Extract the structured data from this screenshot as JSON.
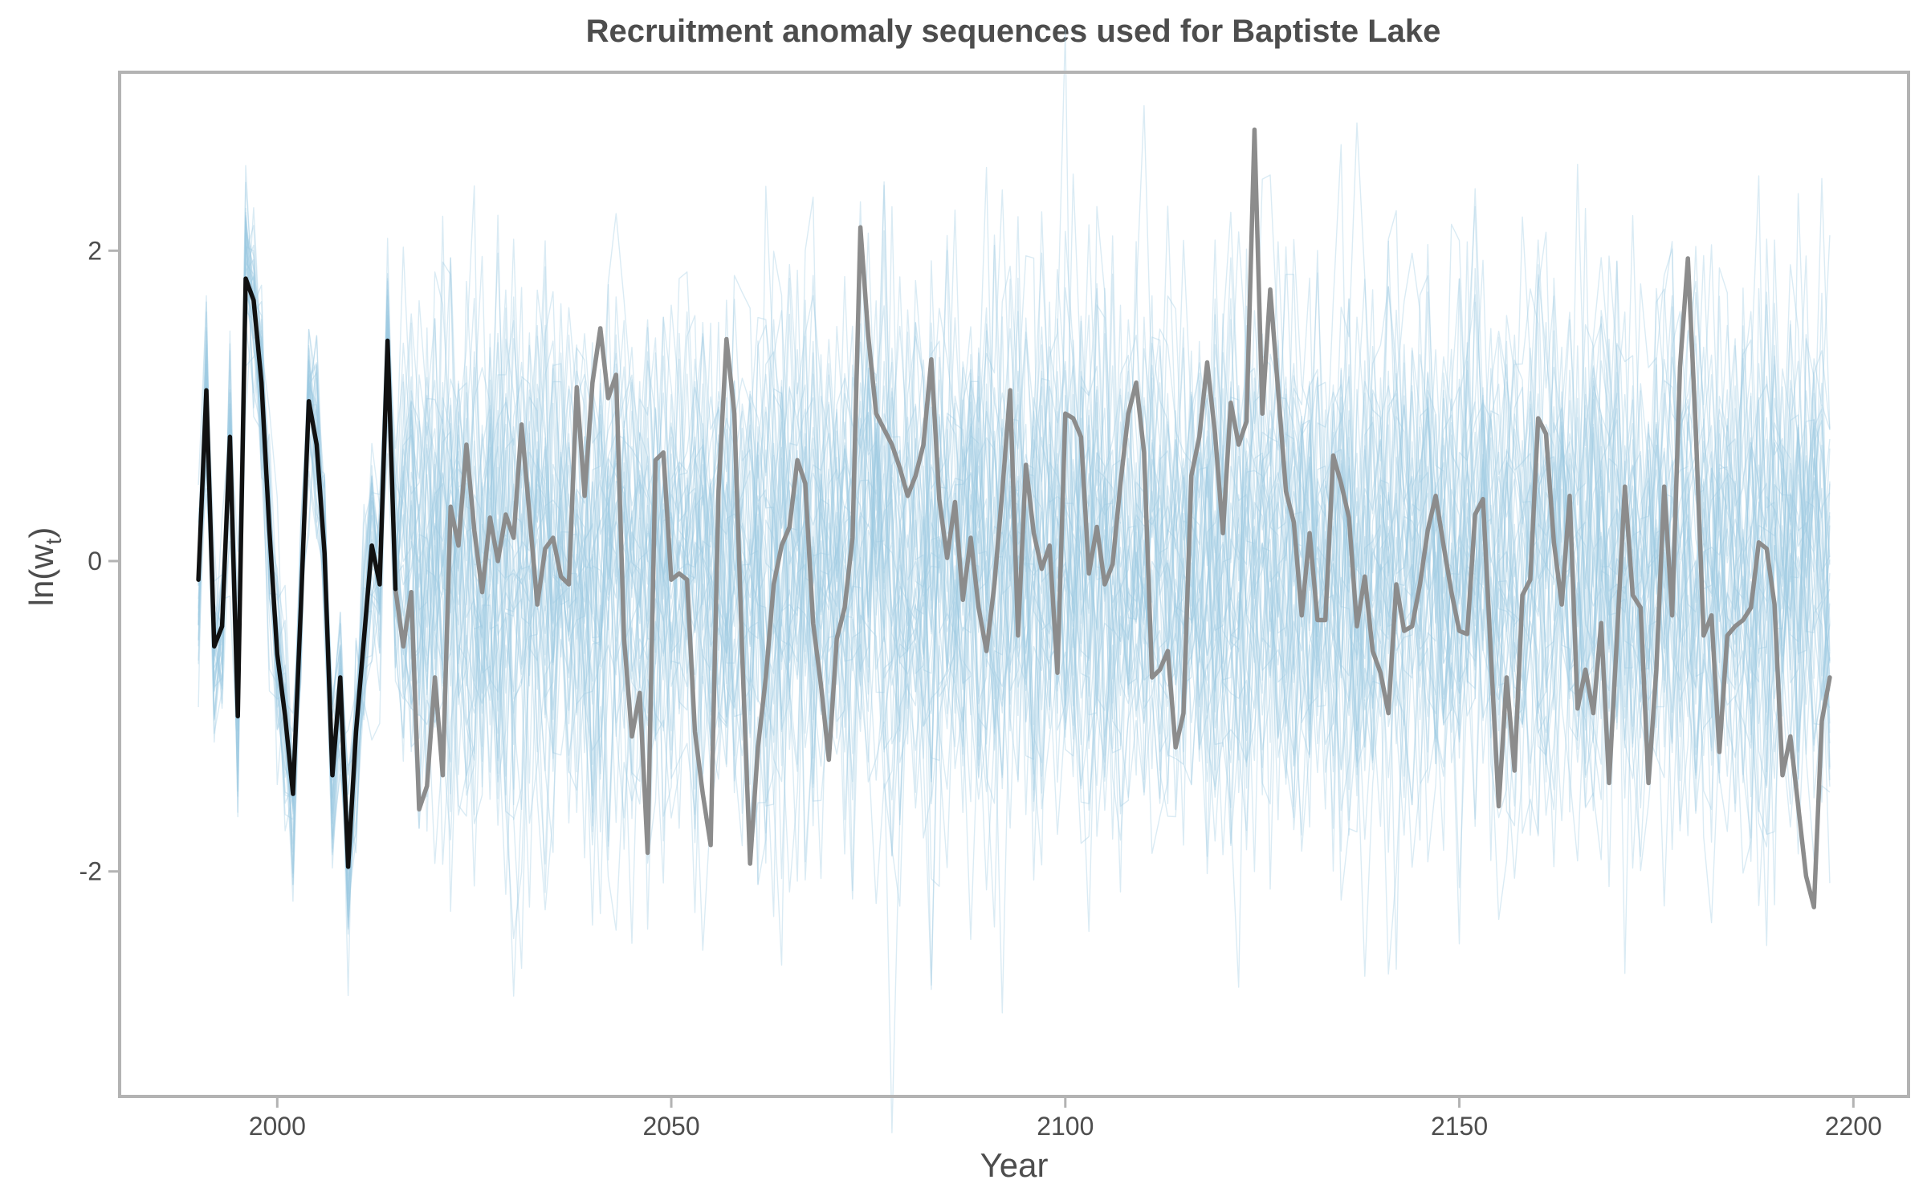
{
  "chart_data": {
    "type": "line",
    "title": "Recruitment anomaly sequences used for Baptiste Lake",
    "xlabel": "Year",
    "ylabel_main": "ln(w",
    "ylabel_sub": "t",
    "ylabel_close": ")",
    "xlim": [
      1980,
      2207
    ],
    "ylim": [
      -3.45,
      3.15
    ],
    "x_ticks": [
      2000,
      2050,
      2100,
      2150,
      2200
    ],
    "y_ticks": [
      2,
      0,
      -2
    ],
    "x_tick_labels": [
      "2000",
      "2050",
      "2100",
      "2150",
      "2200"
    ],
    "y_tick_labels": [
      "2",
      "0",
      "-2"
    ],
    "grid": false,
    "legend": "none",
    "colors": {
      "observed": "#111111",
      "example_projection": "#8c8c8c",
      "simulations": "#9ecae1",
      "frame": "#b3b3b3"
    },
    "observed": {
      "x": [
        1990,
        1991,
        1992,
        1993,
        1994,
        1995,
        1996,
        1997,
        1998,
        1999,
        2000,
        2001,
        2002,
        2003,
        2004,
        2005,
        2006,
        2007,
        2008,
        2009,
        2010,
        2011,
        2012,
        2013,
        2014,
        2015
      ],
      "y": [
        -0.12,
        1.1,
        -0.55,
        -0.42,
        0.8,
        -1.0,
        1.82,
        1.68,
        1.15,
        0.2,
        -0.6,
        -1.0,
        -1.5,
        -0.3,
        1.03,
        0.75,
        0.05,
        -1.38,
        -0.75,
        -1.97,
        -1.1,
        -0.5,
        0.1,
        -0.15,
        1.42,
        -0.18
      ]
    },
    "example_projection": {
      "x": [
        2015,
        2016,
        2017,
        2018,
        2019,
        2020,
        2021,
        2022,
        2023,
        2024,
        2025,
        2026,
        2027,
        2028,
        2029,
        2030,
        2031,
        2032,
        2033,
        2034,
        2035,
        2036,
        2037,
        2038,
        2039,
        2040,
        2041,
        2042,
        2043,
        2044,
        2045,
        2046,
        2047,
        2048,
        2049,
        2050,
        2051,
        2052,
        2053,
        2054,
        2055,
        2056,
        2057,
        2058,
        2059,
        2060,
        2061,
        2062,
        2063,
        2064,
        2065,
        2066,
        2067,
        2068,
        2069,
        2070,
        2071,
        2072,
        2073,
        2074,
        2075,
        2076,
        2077,
        2078,
        2079,
        2080,
        2081,
        2082,
        2083,
        2084,
        2085,
        2086,
        2087,
        2088,
        2089,
        2090,
        2091,
        2092,
        2093,
        2094,
        2095,
        2096,
        2097,
        2098,
        2099,
        2100,
        2101,
        2102,
        2103,
        2104,
        2105,
        2106,
        2107,
        2108,
        2109,
        2110,
        2111,
        2112,
        2113,
        2114,
        2115,
        2116,
        2117,
        2118,
        2119,
        2120,
        2121,
        2122,
        2123,
        2124,
        2125,
        2126,
        2127,
        2128,
        2129,
        2130,
        2131,
        2132,
        2133,
        2134,
        2135,
        2136,
        2137,
        2138,
        2139,
        2140,
        2141,
        2142,
        2143,
        2144,
        2145,
        2146,
        2147,
        2148,
        2149,
        2150,
        2151,
        2152,
        2153,
        2154,
        2155,
        2156,
        2157,
        2158,
        2159,
        2160,
        2161,
        2162,
        2163,
        2164,
        2165,
        2166,
        2167,
        2168,
        2169,
        2170,
        2171,
        2172,
        2173,
        2174,
        2175,
        2176,
        2177,
        2178,
        2179,
        2180,
        2181,
        2182,
        2183,
        2184,
        2185,
        2186,
        2187,
        2188,
        2189,
        2190,
        2191,
        2192,
        2193,
        2194,
        2195,
        2196,
        2197
      ],
      "y": [
        -0.18,
        -0.55,
        -0.2,
        -1.6,
        -1.45,
        -0.75,
        -1.38,
        0.35,
        0.1,
        0.75,
        0.2,
        -0.2,
        0.28,
        0.0,
        0.3,
        0.15,
        0.88,
        0.3,
        -0.28,
        0.08,
        0.15,
        -0.1,
        -0.15,
        1.12,
        0.42,
        1.15,
        1.5,
        1.05,
        1.2,
        -0.5,
        -1.13,
        -0.85,
        -1.88,
        0.65,
        0.7,
        -0.12,
        -0.08,
        -0.12,
        -1.1,
        -1.5,
        -1.83,
        0.45,
        1.43,
        0.95,
        -0.6,
        -1.95,
        -1.2,
        -0.75,
        -0.15,
        0.1,
        0.22,
        0.65,
        0.5,
        -0.4,
        -0.8,
        -1.28,
        -0.5,
        -0.3,
        0.15,
        2.15,
        1.45,
        0.95,
        0.85,
        0.75,
        0.6,
        0.42,
        0.55,
        0.75,
        1.3,
        0.4,
        0.02,
        0.38,
        -0.25,
        0.15,
        -0.3,
        -0.58,
        -0.15,
        0.45,
        1.1,
        -0.48,
        0.62,
        0.18,
        -0.05,
        0.1,
        -0.72,
        0.95,
        0.92,
        0.8,
        -0.08,
        0.22,
        -0.15,
        -0.02,
        0.5,
        0.95,
        1.15,
        0.7,
        -0.75,
        -0.7,
        -0.58,
        -1.2,
        -0.98,
        0.55,
        0.8,
        1.28,
        0.82,
        0.18,
        1.02,
        0.75,
        0.9,
        2.78,
        0.95,
        1.75,
        1.1,
        0.45,
        0.25,
        -0.35,
        0.18,
        -0.38,
        -0.38,
        0.68,
        0.5,
        0.28,
        -0.42,
        -0.1,
        -0.58,
        -0.72,
        -0.98,
        -0.15,
        -0.45,
        -0.42,
        -0.15,
        0.2,
        0.42,
        0.1,
        -0.2,
        -0.45,
        -0.47,
        0.3,
        0.4,
        -0.6,
        -1.58,
        -0.75,
        -1.35,
        -0.22,
        -0.12,
        0.92,
        0.82,
        0.12,
        -0.28,
        0.42,
        -0.95,
        -0.7,
        -0.98,
        -0.4,
        -1.43,
        -0.5,
        0.48,
        -0.22,
        -0.3,
        -1.43,
        -0.7,
        0.48,
        -0.35,
        1.25,
        1.95,
        0.85,
        -0.48,
        -0.35,
        -1.23,
        -0.48,
        -0.42,
        -0.38,
        -0.3,
        0.12,
        0.08,
        -0.28,
        -1.38,
        -1.13,
        -1.58,
        -2.03,
        -2.23,
        -1.03,
        -0.75
      ]
    },
    "simulations": {
      "count": 40,
      "x_start": 1990,
      "x_end": 2197,
      "sd": 0.82,
      "lag1": 0.25
    }
  }
}
